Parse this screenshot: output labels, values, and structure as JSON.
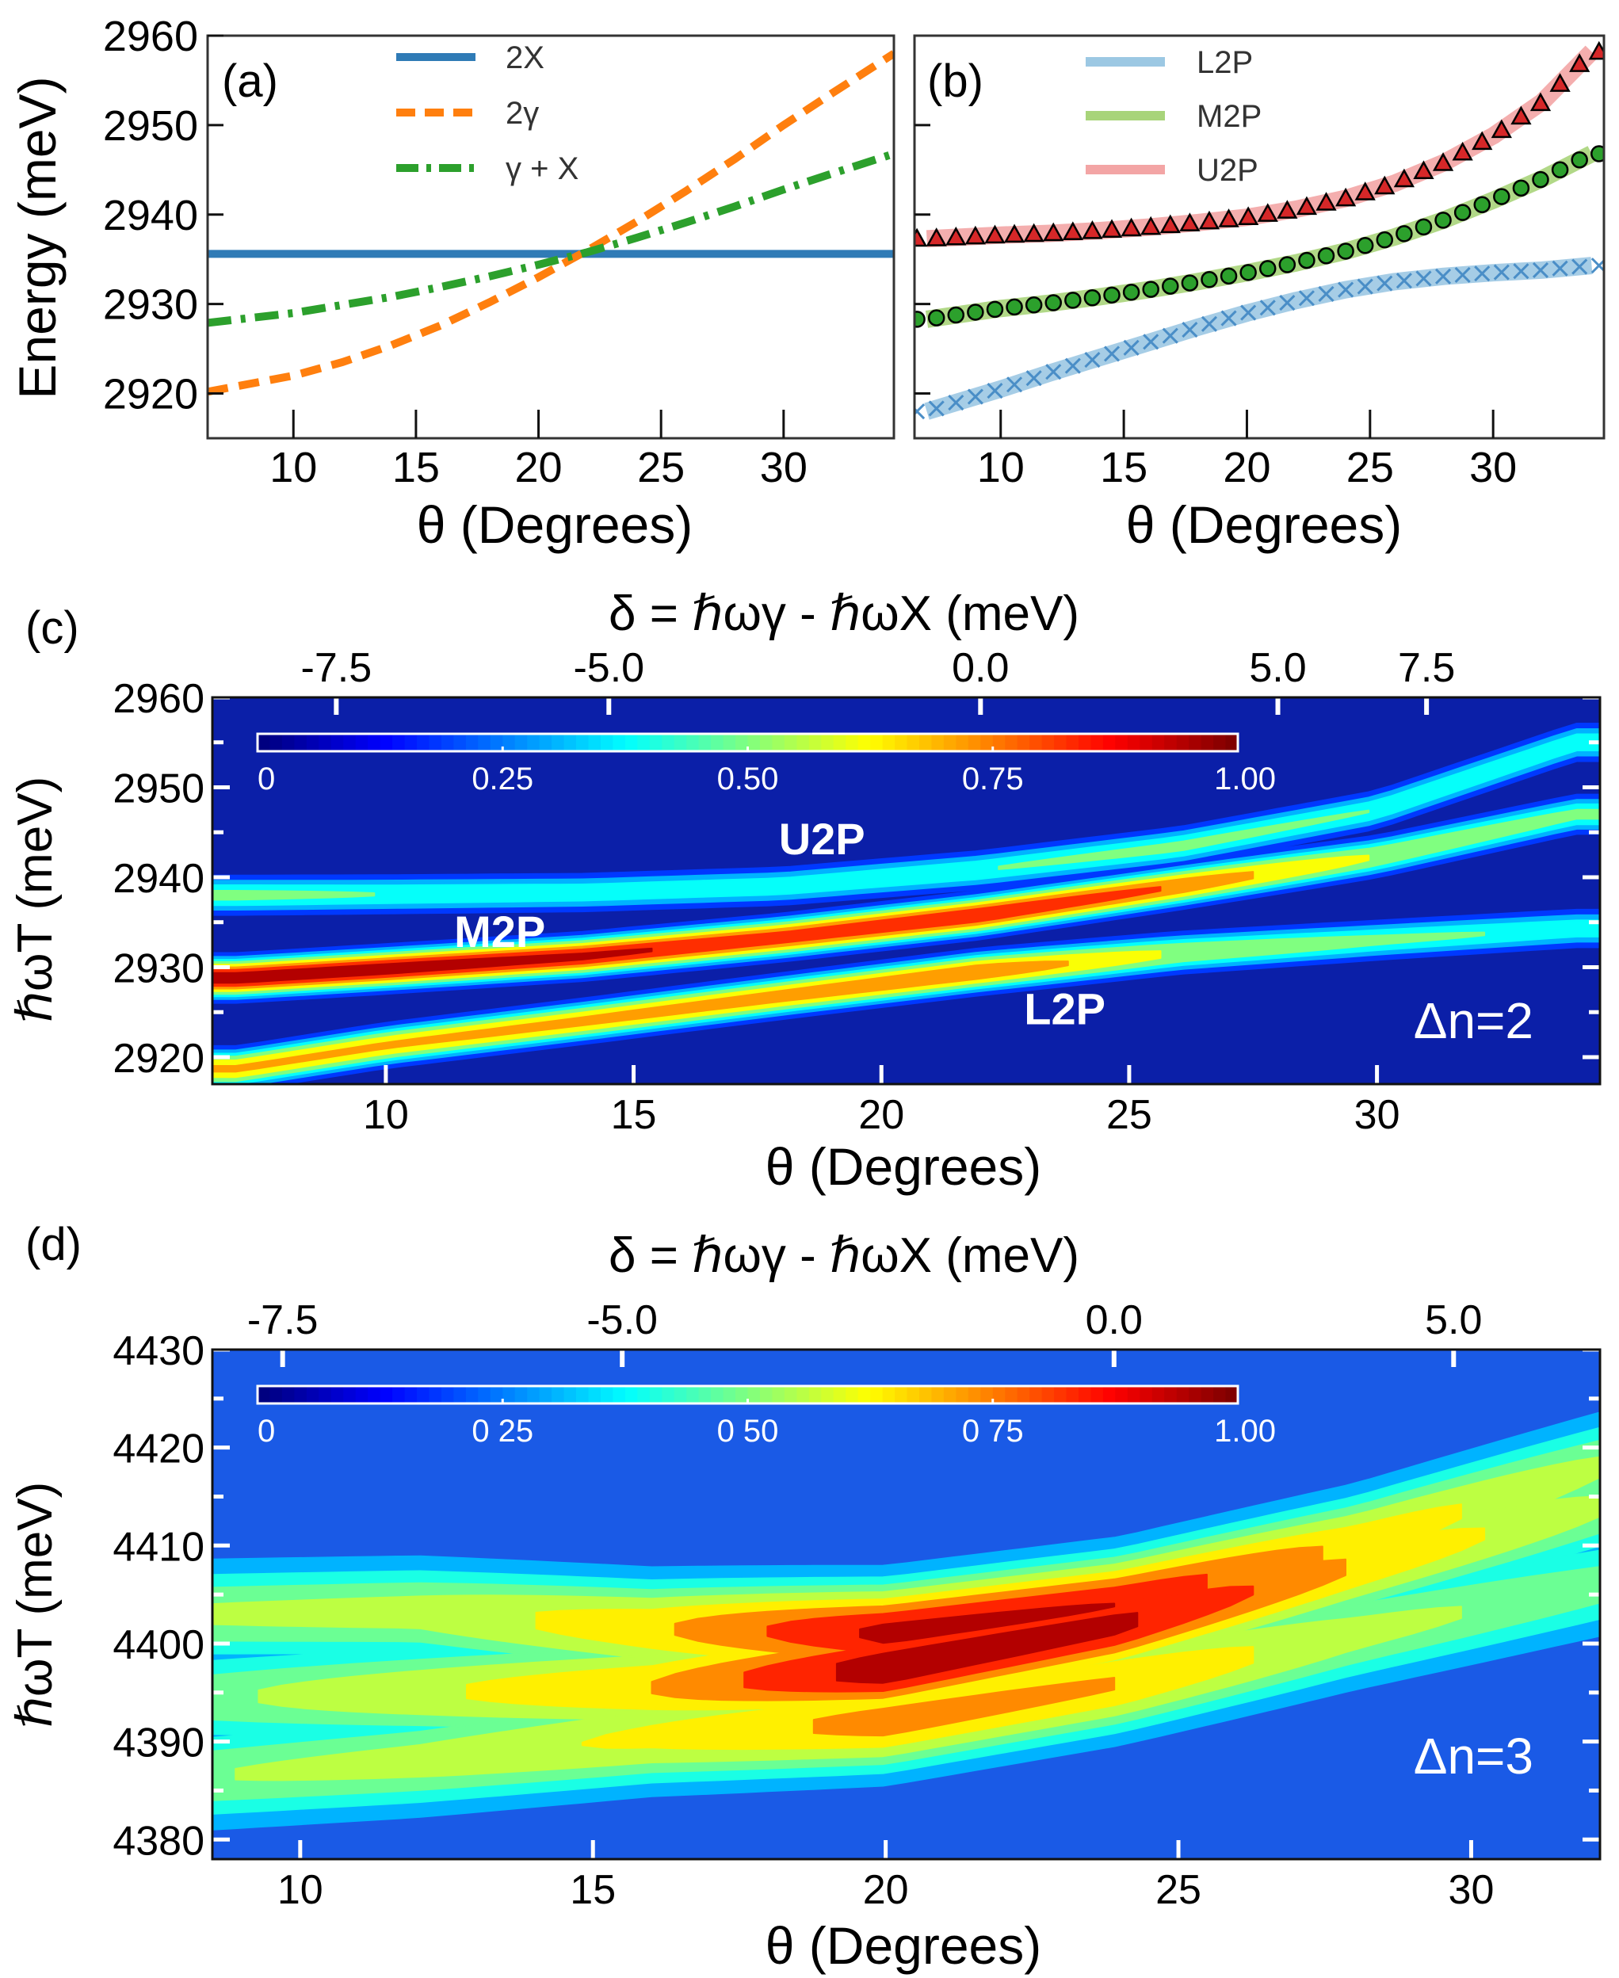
{
  "chart_data": [
    {
      "panel": "a",
      "panel_label": "(a)",
      "type": "line",
      "xlabel": "θ (Degrees)",
      "ylabel": "Energy (meV)",
      "xlim": [
        6.5,
        34.5
      ],
      "ylim": [
        2915,
        2960
      ],
      "xticks": [
        10,
        15,
        20,
        25,
        30
      ],
      "yticks": [
        2920,
        2930,
        2940,
        2950,
        2960
      ],
      "legend_position": "top-center",
      "series": [
        {
          "name": "2X",
          "style": "solid",
          "color": "#2f7bb6",
          "x": [
            6.5,
            34.5
          ],
          "y": [
            2935.6,
            2935.6
          ]
        },
        {
          "name": "2γ",
          "style": "dashed",
          "color": "#ff7f0e",
          "x": [
            6.5,
            10,
            12,
            14,
            16,
            18,
            20,
            22,
            24,
            26,
            28,
            30,
            32,
            34.5
          ],
          "y": [
            2920.2,
            2922.0,
            2923.5,
            2925.4,
            2927.6,
            2930.2,
            2933.0,
            2936.0,
            2939.2,
            2942.6,
            2946.2,
            2950.0,
            2953.6,
            2958.0
          ]
        },
        {
          "name": "γ + X",
          "style": "dashdot",
          "color": "#2ca02c",
          "x": [
            6.5,
            10,
            12,
            14,
            16,
            18,
            20,
            22,
            24,
            26,
            28,
            30,
            32,
            34.5
          ],
          "y": [
            2927.9,
            2929.0,
            2929.9,
            2930.8,
            2931.9,
            2933.1,
            2934.4,
            2935.8,
            2937.4,
            2939.1,
            2940.9,
            2942.8,
            2944.6,
            2946.8
          ]
        }
      ]
    },
    {
      "panel": "b",
      "panel_label": "(b)",
      "type": "scatter",
      "xlabel": "θ (Degrees)",
      "ylabel": "",
      "xlim": [
        6.5,
        34.5
      ],
      "ylim": [
        2915,
        2960
      ],
      "xticks": [
        10,
        15,
        20,
        25,
        30
      ],
      "legend_position": "top-center",
      "series": [
        {
          "name": "L2P",
          "marker": "x",
          "color": "#9cc8e3",
          "marker_color": "#4a8ec7",
          "x": [
            7,
            10,
            12,
            14,
            16,
            18,
            20,
            22,
            24,
            26,
            28,
            30,
            32,
            34
          ],
          "y": [
            2918.0,
            2920.5,
            2922.3,
            2924.0,
            2925.7,
            2927.4,
            2929.0,
            2930.4,
            2931.6,
            2932.5,
            2933.1,
            2933.5,
            2933.8,
            2934.3
          ]
        },
        {
          "name": "M2P",
          "marker": "circle",
          "color": "#a8d47a",
          "marker_color": "#2ca02c",
          "x": [
            7,
            10,
            12,
            14,
            16,
            18,
            20,
            22,
            24,
            26,
            28,
            30,
            32,
            34
          ],
          "y": [
            2928.3,
            2929.5,
            2930.1,
            2930.8,
            2931.6,
            2932.5,
            2933.5,
            2934.6,
            2935.9,
            2937.5,
            2939.4,
            2941.6,
            2944.0,
            2946.8
          ]
        },
        {
          "name": "U2P",
          "marker": "triangle",
          "color": "#f3a5a5",
          "marker_color": "#d62728",
          "x": [
            7,
            10,
            12,
            14,
            16,
            18,
            20,
            22,
            24,
            26,
            28,
            30,
            32,
            34
          ],
          "y": [
            2937.3,
            2937.7,
            2937.9,
            2938.2,
            2938.6,
            2939.1,
            2939.7,
            2940.6,
            2941.8,
            2943.5,
            2945.8,
            2948.8,
            2952.6,
            2958.2
          ]
        }
      ]
    },
    {
      "panel": "c",
      "panel_label": "(c)",
      "type": "heatmap",
      "xlabel": "θ (Degrees)",
      "ylabel": "ℏωT (meV)",
      "top_xlabel": "δ = ℏωγ - ℏωX (meV)",
      "xlim": [
        6.5,
        34.5
      ],
      "ylim": [
        2917,
        2960
      ],
      "xticks": [
        10,
        15,
        20,
        25,
        30
      ],
      "yticks": [
        2920,
        2930,
        2940,
        2950,
        2960
      ],
      "top_ticks": [
        {
          "theta": 9.0,
          "label": "-7.5"
        },
        {
          "theta": 14.5,
          "label": "-5.0"
        },
        {
          "theta": 22.0,
          "label": "0.0"
        },
        {
          "theta": 28.0,
          "label": "5.0"
        },
        {
          "theta": 31.0,
          "label": "7.5"
        }
      ],
      "colorbar": {
        "min": 0,
        "max": 1,
        "ticks": [
          "0",
          "0.25",
          "0.50",
          "0.75",
          "1.00"
        ]
      },
      "annotation": "Δn=2",
      "band_labels": [
        {
          "label": "U2P",
          "theta": 18.8,
          "energy": 2944.3
        },
        {
          "label": "M2P",
          "theta": 12.3,
          "energy": 2934.0
        },
        {
          "label": "L2P",
          "theta": 23.7,
          "energy": 2925.4
        }
      ],
      "bands": [
        {
          "name": "U2P",
          "theta": [
            7,
            10,
            14,
            18,
            22,
            26,
            30,
            34
          ],
          "energy": [
            2938.0,
            2938.1,
            2938.3,
            2939.0,
            2940.8,
            2943.4,
            2947.5,
            2955.0
          ],
          "peak": [
            0.45,
            0.42,
            0.4,
            0.4,
            0.42,
            0.45,
            0.42,
            0.4
          ]
        },
        {
          "name": "M2P",
          "theta": [
            7,
            10,
            14,
            18,
            22,
            26,
            30,
            34
          ],
          "energy": [
            2928.8,
            2929.8,
            2931.2,
            2933.3,
            2935.8,
            2939.0,
            2942.3,
            2947.0
          ],
          "peak": [
            1.0,
            1.0,
            0.95,
            0.88,
            0.92,
            0.8,
            0.55,
            0.45
          ]
        },
        {
          "name": "L2P",
          "theta": [
            7,
            10,
            14,
            18,
            22,
            26,
            30,
            34
          ],
          "energy": [
            2918.7,
            2921.3,
            2924.0,
            2926.8,
            2929.5,
            2931.6,
            2933.0,
            2934.3
          ],
          "peak": [
            0.7,
            0.7,
            0.72,
            0.75,
            0.8,
            0.55,
            0.45,
            0.4
          ]
        }
      ]
    },
    {
      "panel": "d",
      "panel_label": "(d)",
      "type": "heatmap",
      "xlabel": "θ (Degrees)",
      "ylabel": "ℏωT (meV)",
      "top_xlabel": "δ = ℏωγ - ℏωX (meV)",
      "xlim": [
        8.5,
        32.2
      ],
      "ylim": [
        4378,
        4430
      ],
      "xticks": [
        10,
        15,
        20,
        25,
        30
      ],
      "yticks": [
        4380,
        4390,
        4400,
        4410,
        4420,
        4430
      ],
      "top_ticks": [
        {
          "theta": 9.7,
          "label": "-7.5"
        },
        {
          "theta": 15.5,
          "label": "-5.0"
        },
        {
          "theta": 23.9,
          "label": "0.0"
        },
        {
          "theta": 29.7,
          "label": "5.0"
        }
      ],
      "colorbar": {
        "min": 0,
        "max": 1,
        "ticks": [
          "0",
          "0 25",
          "0 50",
          "0 75",
          "1.00"
        ]
      },
      "annotation": "Δn=3",
      "bands": [
        {
          "theta": [
            8.5,
            12,
            16,
            20,
            24,
            28,
            32.2
          ],
          "energy": [
            4403.0,
            4403.2,
            4401.5,
            4401.0,
            4404.0,
            4410.0,
            4418.0
          ],
          "peak": [
            0.42,
            0.45,
            0.62,
            0.92,
            0.88,
            0.62,
            0.42
          ]
        },
        {
          "theta": [
            8.5,
            12,
            16,
            20,
            24,
            28,
            32.2
          ],
          "energy": [
            4394.5,
            4395.0,
            4395.5,
            4397.5,
            4402.0,
            4408.0,
            4414.0
          ],
          "peak": [
            0.38,
            0.5,
            0.65,
            0.98,
            0.92,
            0.65,
            0.42
          ]
        },
        {
          "theta": [
            8.5,
            12,
            16,
            20,
            24,
            28,
            32.2
          ],
          "energy": [
            4386.5,
            4388.0,
            4390.5,
            4392.0,
            4396.0,
            4401.0,
            4406.0
          ],
          "peak": [
            0.4,
            0.45,
            0.55,
            0.7,
            0.65,
            0.45,
            0.35
          ]
        }
      ]
    }
  ]
}
